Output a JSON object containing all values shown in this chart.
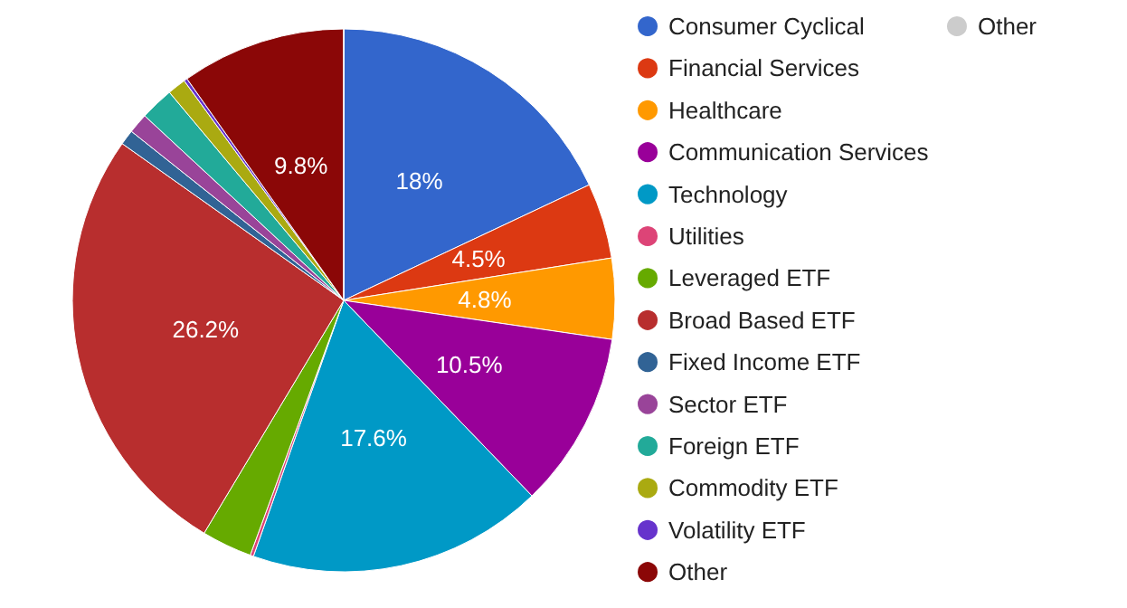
{
  "chart_data": {
    "type": "pie",
    "categories": [
      "Consumer Cyclical",
      "Financial Services",
      "Healthcare",
      "Communication Services",
      "Technology",
      "Utilities",
      "Leveraged ETF",
      "Broad Based ETF",
      "Fixed Income ETF",
      "Sector ETF",
      "Foreign ETF",
      "Commodity ETF",
      "Volatility ETF",
      "Other",
      "Other"
    ],
    "values": [
      18,
      4.5,
      4.8,
      10.5,
      17.6,
      0.2,
      3.0,
      26.2,
      0.9,
      1.2,
      2.0,
      1.1,
      0.2,
      9.8,
      0
    ],
    "value_labels": [
      "18%",
      "4.5%",
      "4.8%",
      "10.5%",
      "17.6%",
      null,
      null,
      "26.2%",
      null,
      null,
      null,
      null,
      null,
      "9.8%",
      null
    ],
    "colors": [
      "#3366cc",
      "#dc3912",
      "#ff9900",
      "#990099",
      "#0099c6",
      "#dd4477",
      "#66aa00",
      "#b82e2e",
      "#316395",
      "#994499",
      "#22aa99",
      "#aaaa11",
      "#6633cc",
      "#8b0707",
      "#cccccc"
    ],
    "legend": "right"
  }
}
